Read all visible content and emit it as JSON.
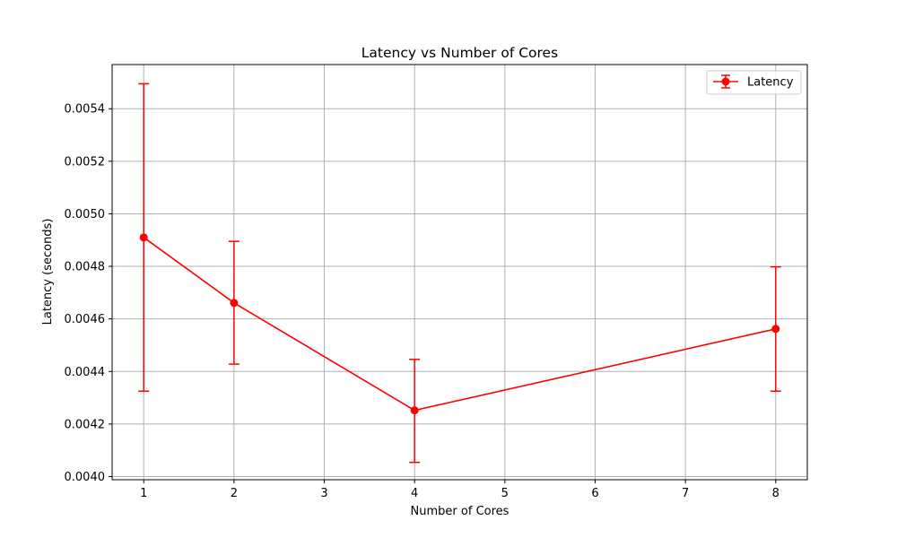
{
  "chart_data": {
    "type": "line",
    "title": "Latency vs Number of Cores",
    "xlabel": "Number of Cores",
    "ylabel": "Latency (seconds)",
    "x": [
      1,
      2,
      4,
      8
    ],
    "series": [
      {
        "name": "Latency",
        "values": [
          0.00491,
          0.004661,
          0.004252,
          0.004562
        ],
        "err_low": [
          0.004325,
          0.004428,
          0.004054,
          0.004325
        ],
        "err_high": [
          0.005495,
          0.004895,
          0.004446,
          0.004798
        ],
        "color": "#ff0000"
      }
    ],
    "xlim": [
      0.65,
      8.35
    ],
    "ylim": [
      0.003988,
      0.005568
    ],
    "xticks": [
      1,
      2,
      3,
      4,
      5,
      6,
      7,
      8
    ],
    "xtick_labels": [
      "1",
      "2",
      "3",
      "4",
      "5",
      "6",
      "7",
      "8"
    ],
    "yticks": [
      0.004,
      0.0042,
      0.0044,
      0.0046,
      0.0048,
      0.005,
      0.0052,
      0.0054
    ],
    "ytick_labels": [
      "0.0040",
      "0.0042",
      "0.0044",
      "0.0046",
      "0.0048",
      "0.0050",
      "0.0052",
      "0.0054"
    ],
    "grid": true,
    "legend_position": "top-right",
    "colors": {
      "grid": "#b0b0b0",
      "axes": "#000000"
    }
  }
}
